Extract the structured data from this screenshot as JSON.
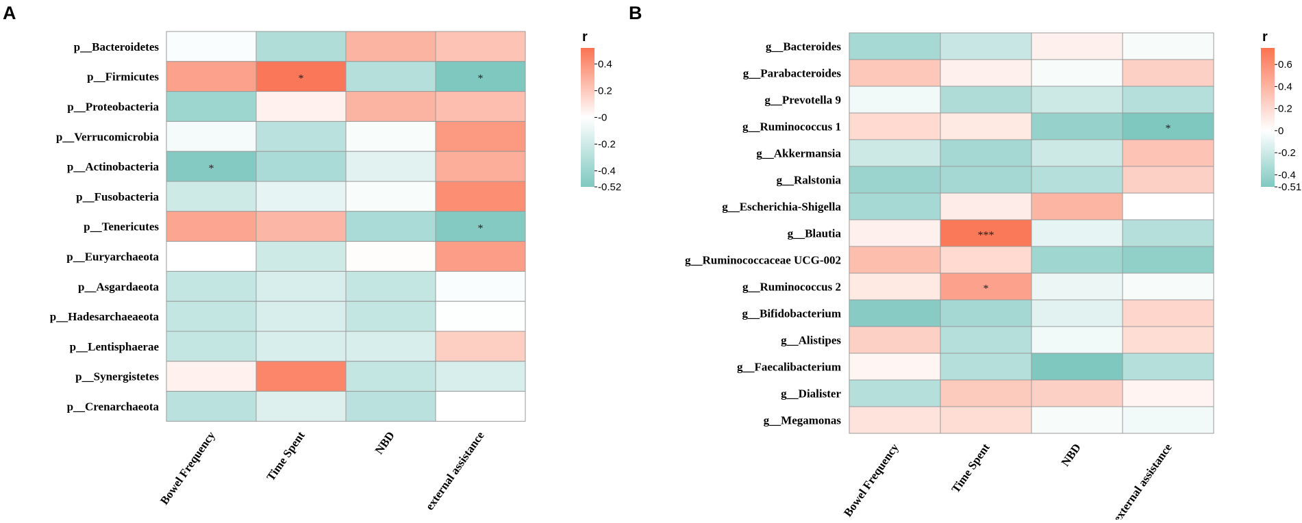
{
  "colors": {
    "negative": "#7fc8c0",
    "neutral": "#ffffff",
    "positive": "#fa7352",
    "grid": "#9a9a9a"
  },
  "chart_data": [
    {
      "type": "heatmap",
      "panel_label": "A",
      "legend_title": "r",
      "columns": [
        "Bowel Frequency",
        "Time Spent",
        "NBD",
        "external assistance"
      ],
      "rows": [
        "p__Bacteroidetes",
        "p__Firmicutes",
        "p__Proteobacteria",
        "p__Verrucomicrobia",
        "p__Actinobacteria",
        "p__Fusobacteria",
        "p__Tenericutes",
        "p__Euryarchaeota",
        "p__Asgardaeota",
        "p__Hadesarchaeaeota",
        "p__Lentisphaerae",
        "p__Synergistetes",
        "p__Crenarchaeota"
      ],
      "values": [
        [
          -0.02,
          -0.32,
          0.28,
          0.22
        ],
        [
          0.35,
          0.5,
          -0.3,
          -0.52
        ],
        [
          -0.4,
          0.05,
          0.28,
          0.24
        ],
        [
          -0.04,
          -0.28,
          -0.03,
          0.38
        ],
        [
          -0.5,
          -0.34,
          -0.12,
          0.3
        ],
        [
          -0.2,
          -0.1,
          -0.03,
          0.42
        ],
        [
          0.33,
          0.27,
          -0.34,
          -0.5
        ],
        [
          0.0,
          -0.2,
          0.01,
          0.36
        ],
        [
          -0.24,
          -0.16,
          -0.24,
          -0.02
        ],
        [
          -0.24,
          -0.16,
          -0.24,
          -0.01
        ],
        [
          -0.24,
          -0.16,
          -0.16,
          0.18
        ],
        [
          0.05,
          0.45,
          -0.24,
          -0.16
        ],
        [
          -0.28,
          -0.14,
          -0.28,
          0.0
        ]
      ],
      "significance": [
        [
          "",
          "",
          "",
          ""
        ],
        [
          "",
          "*",
          "",
          "*"
        ],
        [
          "",
          "",
          "",
          ""
        ],
        [
          "",
          "",
          "",
          ""
        ],
        [
          "*",
          "",
          "",
          ""
        ],
        [
          "",
          "",
          "",
          ""
        ],
        [
          "",
          "",
          "",
          "*"
        ],
        [
          "",
          "",
          "",
          ""
        ],
        [
          "",
          "",
          "",
          ""
        ],
        [
          "",
          "",
          "",
          ""
        ],
        [
          "",
          "",
          "",
          ""
        ],
        [
          "",
          "",
          "",
          ""
        ],
        [
          "",
          "",
          "",
          ""
        ]
      ],
      "color_range": [
        -0.52,
        0.52
      ],
      "colorbar_ticks": [
        "0.4",
        "0.2",
        "-0",
        "-0.2",
        "-0.4",
        "-0.52"
      ],
      "colorbar_tick_values": [
        0.4,
        0.2,
        0,
        -0.2,
        -0.4,
        -0.52
      ]
    },
    {
      "type": "heatmap",
      "panel_label": "B",
      "legend_title": "r",
      "columns": [
        "Bowel Frequency",
        "Time Spent",
        "NBD",
        "external assistance"
      ],
      "rows": [
        "g__Bacteroides",
        "g__Parabacteroides",
        "g__Prevotella 9",
        "g__Ruminococcus 1",
        "g__Akkermansia",
        "g__Ralstonia",
        "g__Escherichia-Shigella",
        "g__Blautia",
        "g__Ruminococcaceae UCG-002",
        "g__Ruminococcus 2",
        "g__Bifidobacterium",
        "g__Alistipes",
        "g__Faecalibacterium",
        "g__Dialister",
        "g__Megamonas"
      ],
      "values": [
        [
          -0.35,
          -0.22,
          0.08,
          -0.03
        ],
        [
          0.3,
          0.08,
          -0.03,
          0.25
        ],
        [
          -0.05,
          -0.32,
          -0.2,
          -0.3
        ],
        [
          0.2,
          0.12,
          -0.42,
          -0.51
        ],
        [
          -0.2,
          -0.36,
          -0.2,
          0.32
        ],
        [
          -0.4,
          -0.36,
          -0.3,
          0.25
        ],
        [
          -0.35,
          0.1,
          0.4,
          0.0
        ],
        [
          0.08,
          0.72,
          -0.1,
          -0.3
        ],
        [
          0.35,
          0.2,
          -0.38,
          -0.44
        ],
        [
          0.12,
          0.5,
          -0.08,
          -0.03
        ],
        [
          -0.48,
          -0.36,
          -0.12,
          0.22
        ],
        [
          0.25,
          -0.3,
          -0.05,
          0.18
        ],
        [
          0.05,
          -0.3,
          -0.51,
          -0.3
        ],
        [
          -0.3,
          0.28,
          0.25,
          0.06
        ],
        [
          0.15,
          0.18,
          -0.03,
          -0.05
        ]
      ],
      "significance": [
        [
          "",
          "",
          "",
          ""
        ],
        [
          "",
          "",
          "",
          ""
        ],
        [
          "",
          "",
          "",
          ""
        ],
        [
          "",
          "",
          "",
          "*"
        ],
        [
          "",
          "",
          "",
          ""
        ],
        [
          "",
          "",
          "",
          ""
        ],
        [
          "",
          "",
          "",
          ""
        ],
        [
          "",
          "***",
          "",
          ""
        ],
        [
          "",
          "",
          "",
          ""
        ],
        [
          "",
          "*",
          "",
          ""
        ],
        [
          "",
          "",
          "",
          ""
        ],
        [
          "",
          "",
          "",
          ""
        ],
        [
          "",
          "",
          "",
          ""
        ],
        [
          "",
          "",
          "",
          ""
        ],
        [
          "",
          "",
          "",
          ""
        ]
      ],
      "color_range": [
        -0.51,
        0.75
      ],
      "colorbar_ticks": [
        "0.6",
        "0.4",
        "0.2",
        "0",
        "-0.2",
        "-0.4",
        "-0.51"
      ],
      "colorbar_tick_values": [
        0.6,
        0.4,
        0.2,
        0,
        -0.2,
        -0.4,
        -0.51
      ]
    }
  ]
}
